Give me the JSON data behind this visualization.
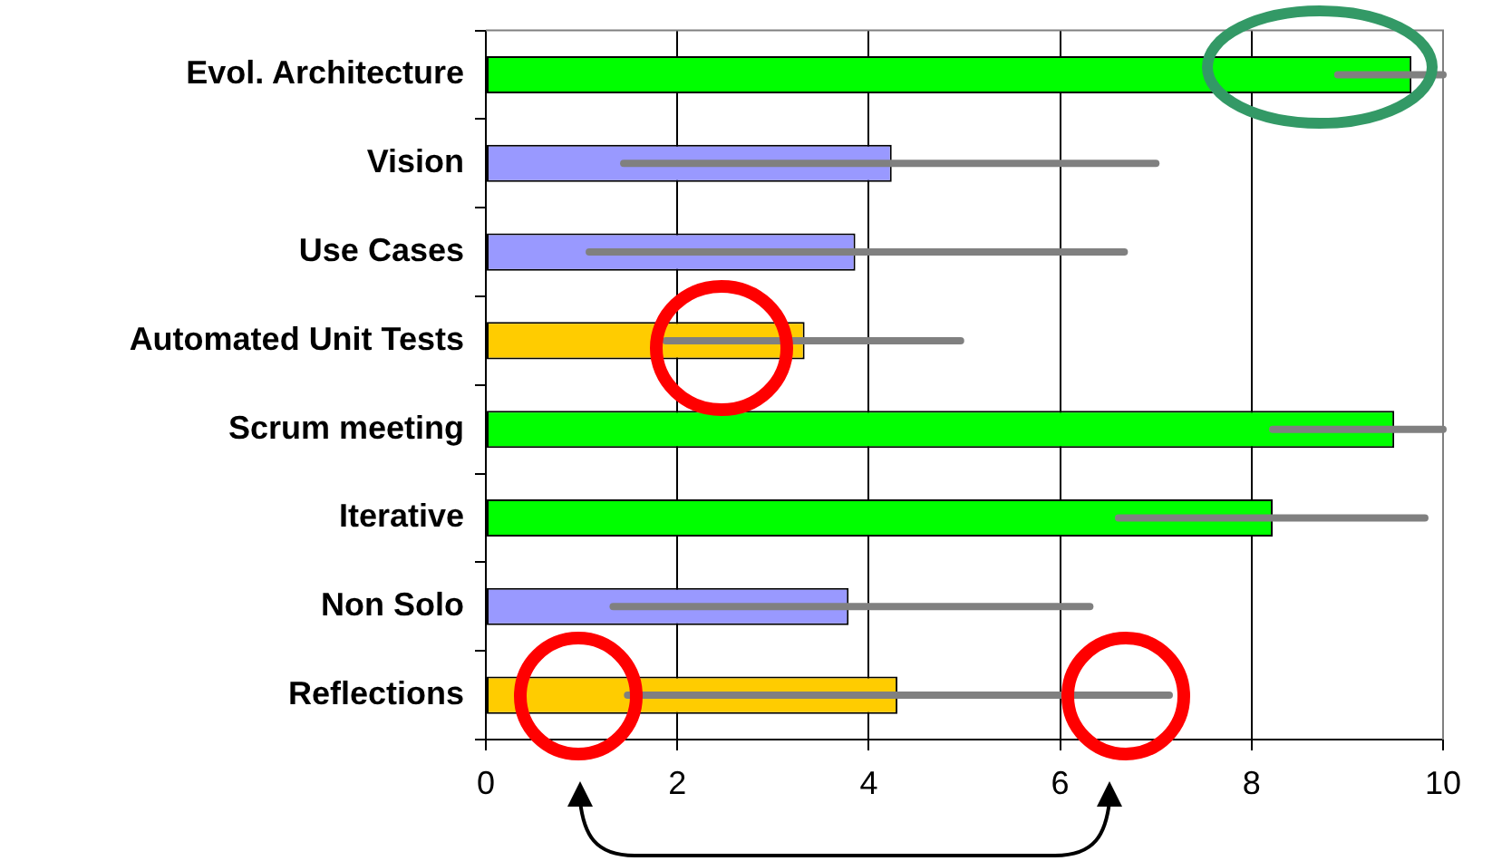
{
  "chart_data": {
    "type": "bar",
    "orientation": "horizontal",
    "categories": [
      "Evol. Architecture",
      "Vision",
      "Use Cases",
      "Automated Unit Tests",
      "Scrum meeting",
      "Iterative",
      "Non Solo",
      "Reflections"
    ],
    "values": [
      9.67,
      4.24,
      3.86,
      3.33,
      9.49,
      8.22,
      3.79,
      4.3
    ],
    "colors": [
      "#00ff00",
      "#9999ff",
      "#9999ff",
      "#ffcc00",
      "#00ff00",
      "#00ff00",
      "#9999ff",
      "#ffcc00"
    ],
    "errors": [
      [
        8.9,
        10
      ],
      [
        1.44,
        7.0
      ],
      [
        1.08,
        6.67
      ],
      [
        1.88,
        4.96
      ],
      [
        8.22,
        10
      ],
      [
        6.61,
        9.81
      ],
      [
        1.33,
        6.31
      ],
      [
        1.48,
        7.14
      ]
    ],
    "xlim": [
      0,
      10
    ],
    "xticks": [
      0,
      2,
      4,
      6,
      8,
      10
    ],
    "grid": "x",
    "legend": false
  }
}
